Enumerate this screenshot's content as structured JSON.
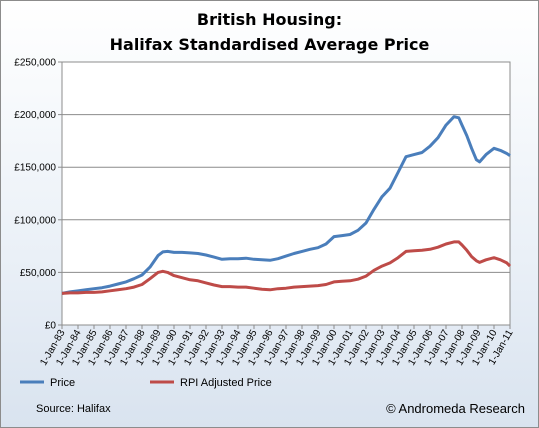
{
  "chart_data": {
    "type": "line",
    "title_line1": "British Housing:",
    "title_line2": "Halifax Standardised Average Price",
    "xlabel": "",
    "ylabel": "",
    "ylim": [
      0,
      250000
    ],
    "y_ticks": [
      {
        "value": 0,
        "label": "£0"
      },
      {
        "value": 50000,
        "label": "£50,000"
      },
      {
        "value": 100000,
        "label": "£100,000"
      },
      {
        "value": 150000,
        "label": "£150,000"
      },
      {
        "value": 200000,
        "label": "£200,000"
      },
      {
        "value": 250000,
        "label": "£250,000"
      }
    ],
    "x_ticks": [
      "1-Jan-83",
      "1-Jan-84",
      "1-Jan-85",
      "1-Jan-86",
      "1-Jan-87",
      "1-Jan-88",
      "1-Jan-89",
      "1-Jan-90",
      "1-Jan-91",
      "1-Jan-92",
      "1-Jan-93",
      "1-Jan-94",
      "1-Jan-95",
      "1-Jan-96",
      "1-Jan-97",
      "1-Jan-98",
      "1-Jan-99",
      "1-Jan-00",
      "1-Jan-01",
      "1-Jan-02",
      "1-Jan-03",
      "1-Jan-04",
      "1-Jan-05",
      "1-Jan-06",
      "1-Jan-07",
      "1-Jan-08",
      "1-Jan-09",
      "1-Jan-10",
      "1-Jan-11"
    ],
    "xlim": [
      1983.0,
      2011.0
    ],
    "grid": "horizontal",
    "legend_position": "bottom-left",
    "series": [
      {
        "name": "Price",
        "color": "#4a7ebb",
        "points": [
          [
            1983.0,
            30000
          ],
          [
            1983.5,
            31500
          ],
          [
            1984.0,
            32500
          ],
          [
            1984.5,
            33500
          ],
          [
            1985.0,
            34500
          ],
          [
            1985.5,
            35500
          ],
          [
            1986.0,
            37000
          ],
          [
            1986.5,
            39000
          ],
          [
            1987.0,
            41000
          ],
          [
            1987.5,
            44000
          ],
          [
            1988.0,
            47500
          ],
          [
            1988.5,
            55000
          ],
          [
            1989.0,
            66000
          ],
          [
            1989.3,
            69500
          ],
          [
            1989.6,
            70000
          ],
          [
            1990.0,
            69000
          ],
          [
            1990.5,
            69000
          ],
          [
            1991.0,
            68500
          ],
          [
            1991.5,
            68000
          ],
          [
            1992.0,
            66500
          ],
          [
            1992.5,
            64500
          ],
          [
            1993.0,
            62500
          ],
          [
            1993.5,
            63000
          ],
          [
            1994.0,
            63000
          ],
          [
            1994.5,
            63500
          ],
          [
            1995.0,
            62500
          ],
          [
            1995.5,
            62000
          ],
          [
            1996.0,
            61500
          ],
          [
            1996.5,
            63000
          ],
          [
            1997.0,
            65500
          ],
          [
            1997.5,
            68000
          ],
          [
            1998.0,
            70000
          ],
          [
            1998.5,
            72000
          ],
          [
            1999.0,
            73500
          ],
          [
            1999.5,
            77000
          ],
          [
            2000.0,
            84000
          ],
          [
            2000.5,
            85000
          ],
          [
            2001.0,
            86000
          ],
          [
            2001.5,
            90000
          ],
          [
            2002.0,
            97000
          ],
          [
            2002.5,
            110000
          ],
          [
            2003.0,
            122000
          ],
          [
            2003.5,
            130000
          ],
          [
            2004.0,
            145000
          ],
          [
            2004.5,
            160000
          ],
          [
            2005.0,
            162000
          ],
          [
            2005.5,
            164000
          ],
          [
            2006.0,
            170000
          ],
          [
            2006.5,
            178000
          ],
          [
            2007.0,
            190000
          ],
          [
            2007.5,
            198000
          ],
          [
            2007.8,
            197000
          ],
          [
            2008.0,
            190000
          ],
          [
            2008.3,
            180000
          ],
          [
            2008.6,
            168000
          ],
          [
            2008.9,
            157000
          ],
          [
            2009.1,
            155000
          ],
          [
            2009.5,
            162000
          ],
          [
            2010.0,
            168000
          ],
          [
            2010.4,
            166000
          ],
          [
            2010.8,
            163000
          ],
          [
            2011.0,
            161000
          ]
        ]
      },
      {
        "name": "RPI Adjusted Price",
        "color": "#be4b48",
        "points": [
          [
            1983.0,
            30000
          ],
          [
            1983.5,
            30500
          ],
          [
            1984.0,
            30500
          ],
          [
            1984.5,
            31000
          ],
          [
            1985.0,
            31000
          ],
          [
            1985.5,
            31500
          ],
          [
            1986.0,
            32500
          ],
          [
            1986.5,
            33500
          ],
          [
            1987.0,
            34500
          ],
          [
            1987.5,
            36000
          ],
          [
            1988.0,
            38500
          ],
          [
            1988.5,
            44000
          ],
          [
            1989.0,
            50000
          ],
          [
            1989.3,
            51000
          ],
          [
            1989.6,
            50000
          ],
          [
            1990.0,
            47000
          ],
          [
            1990.5,
            45000
          ],
          [
            1991.0,
            43000
          ],
          [
            1991.5,
            42000
          ],
          [
            1992.0,
            40000
          ],
          [
            1992.5,
            38000
          ],
          [
            1993.0,
            36500
          ],
          [
            1993.5,
            36500
          ],
          [
            1994.0,
            36000
          ],
          [
            1994.5,
            36000
          ],
          [
            1995.0,
            35000
          ],
          [
            1995.5,
            34000
          ],
          [
            1996.0,
            33500
          ],
          [
            1996.5,
            34500
          ],
          [
            1997.0,
            35000
          ],
          [
            1997.5,
            36000
          ],
          [
            1998.0,
            36500
          ],
          [
            1998.5,
            37000
          ],
          [
            1999.0,
            37500
          ],
          [
            1999.5,
            38500
          ],
          [
            2000.0,
            41000
          ],
          [
            2000.5,
            41500
          ],
          [
            2001.0,
            42000
          ],
          [
            2001.5,
            43500
          ],
          [
            2002.0,
            46500
          ],
          [
            2002.5,
            52000
          ],
          [
            2003.0,
            56000
          ],
          [
            2003.5,
            59000
          ],
          [
            2004.0,
            64000
          ],
          [
            2004.5,
            70000
          ],
          [
            2005.0,
            70500
          ],
          [
            2005.5,
            71000
          ],
          [
            2006.0,
            72000
          ],
          [
            2006.5,
            74000
          ],
          [
            2007.0,
            77000
          ],
          [
            2007.5,
            79000
          ],
          [
            2007.8,
            79000
          ],
          [
            2008.0,
            76000
          ],
          [
            2008.3,
            71000
          ],
          [
            2008.6,
            65000
          ],
          [
            2008.9,
            61000
          ],
          [
            2009.1,
            59500
          ],
          [
            2009.5,
            62000
          ],
          [
            2010.0,
            64000
          ],
          [
            2010.4,
            62000
          ],
          [
            2010.8,
            59000
          ],
          [
            2011.0,
            56000
          ]
        ]
      }
    ]
  },
  "footer": {
    "source": "Source: Halifax",
    "credit": "© Andromeda Research"
  }
}
